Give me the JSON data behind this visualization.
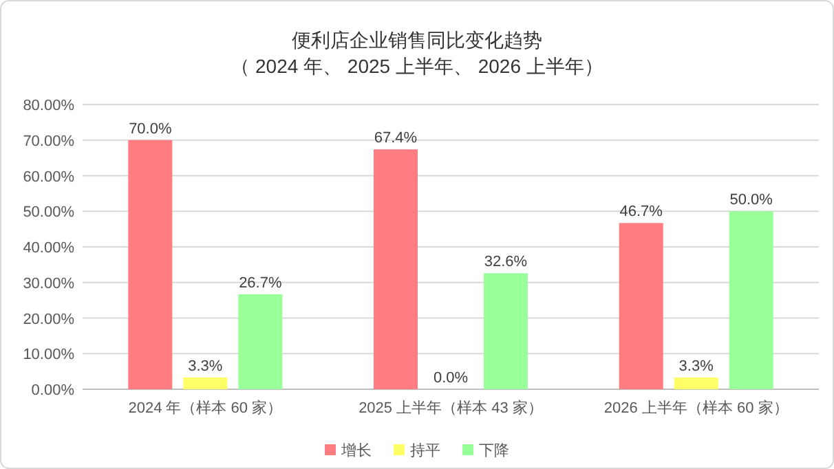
{
  "chart_data": {
    "type": "bar",
    "title": "便利店企业销售同比变化趋势",
    "subtitle": "（  2024 年、 2025 上半年、 2026 上半年）",
    "categories": [
      "2024 年（样本 60 家）",
      "2025 上半年（样本 43 家）",
      "2026 上半年（样本 60 家）"
    ],
    "series": [
      {
        "name": "增长",
        "color": "#ff7c80",
        "values": [
          70.0,
          67.4,
          46.7
        ],
        "value_labels": [
          "70.0%",
          "67.4%",
          "46.7%"
        ]
      },
      {
        "name": "持平",
        "color": "#ffff66",
        "values": [
          3.3,
          0.0,
          3.3
        ],
        "value_labels": [
          "3.3%",
          "0.0%",
          "3.3%"
        ]
      },
      {
        "name": "下降",
        "color": "#99ff99",
        "values": [
          26.7,
          32.6,
          50.0
        ],
        "value_labels": [
          "26.7%",
          "32.6%",
          "50.0%"
        ]
      }
    ],
    "ylim": [
      0,
      80
    ],
    "yticks": [
      {
        "value": 0,
        "label": "0.00%"
      },
      {
        "value": 10,
        "label": "10.00%"
      },
      {
        "value": 20,
        "label": "20.00%"
      },
      {
        "value": 30,
        "label": "30.00%"
      },
      {
        "value": 40,
        "label": "40.00%"
      },
      {
        "value": 50,
        "label": "50.00%"
      },
      {
        "value": 60,
        "label": "60.00%"
      },
      {
        "value": 70,
        "label": "70.00%"
      },
      {
        "value": 80,
        "label": "80.00%"
      }
    ],
    "grid": "y",
    "legend": "bottom"
  }
}
